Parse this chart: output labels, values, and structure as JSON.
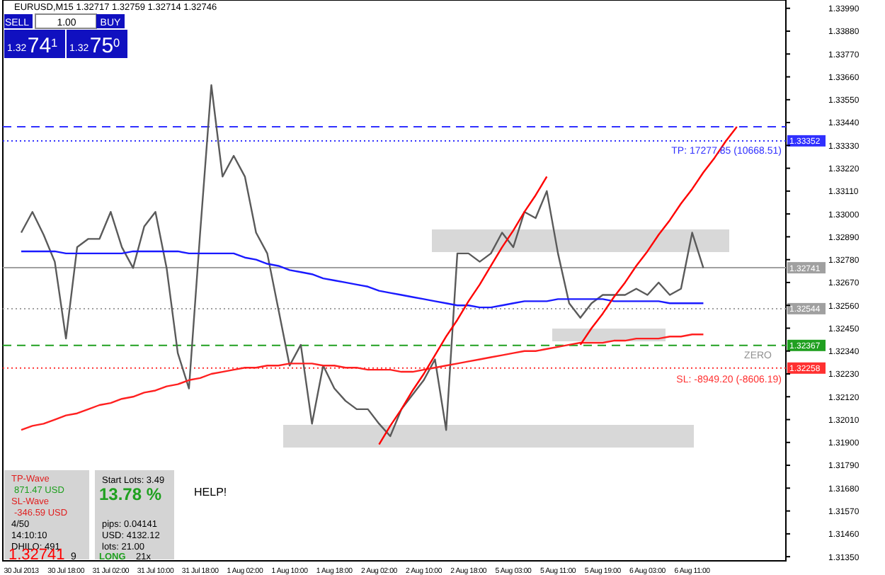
{
  "chart_data": {
    "type": "line",
    "title": "EURUSD,M15  1.32717 1.32759 1.32714 1.32746",
    "categories": [
      "30 Jul 2013",
      null,
      null,
      null,
      "30 Jul 18:00",
      null,
      null,
      null,
      "31 Jul 02:00",
      null,
      null,
      null,
      "31 Jul 10:00",
      null,
      null,
      null,
      "31 Jul 18:00",
      null,
      null,
      null,
      "1 Aug 02:00",
      null,
      null,
      null,
      "1 Aug 10:00",
      null,
      null,
      null,
      "1 Aug 18:00",
      null,
      null,
      null,
      "2 Aug 02:00",
      null,
      null,
      null,
      "2 Aug 10:00",
      null,
      null,
      null,
      "2 Aug 18:00",
      null,
      null,
      null,
      "5 Aug 03:00",
      null,
      null,
      null,
      "5 Aug 11:00",
      null,
      null,
      null,
      "5 Aug 19:00",
      null,
      null,
      null,
      "6 Aug 03:00",
      null,
      null,
      null,
      "6 Aug 11:00",
      null,
      null,
      null,
      null,
      null,
      null,
      null,
      null
    ],
    "ylim": [
      1.3133,
      1.3403
    ],
    "yticks": [
      {
        "value": 1.3135,
        "label": "1.31350"
      },
      {
        "value": 1.3146,
        "label": "1.31460"
      },
      {
        "value": 1.3157,
        "label": "1.31570"
      },
      {
        "value": 1.3168,
        "label": "1.31680"
      },
      {
        "value": 1.3179,
        "label": "1.31790"
      },
      {
        "value": 1.319,
        "label": "1.31900"
      },
      {
        "value": 1.3201,
        "label": "1.32010"
      },
      {
        "value": 1.3212,
        "label": "1.32120"
      },
      {
        "value": 1.3223,
        "label": "1.32230"
      },
      {
        "value": 1.3234,
        "label": "1.32340"
      },
      {
        "value": 1.3245,
        "label": "1.32450"
      },
      {
        "value": 1.3256,
        "label": "1.32560"
      },
      {
        "value": 1.3267,
        "label": "1.32670"
      },
      {
        "value": 1.3278,
        "label": "1.32780"
      },
      {
        "value": 1.3289,
        "label": "1.32890"
      },
      {
        "value": 1.33,
        "label": "1.33000"
      },
      {
        "value": 1.3311,
        "label": "1.33110"
      },
      {
        "value": 1.3322,
        "label": "1.33220"
      },
      {
        "value": 1.3333,
        "label": "1.33330"
      },
      {
        "value": 1.3344,
        "label": "1.33440"
      },
      {
        "value": 1.3355,
        "label": "1.33550"
      },
      {
        "value": 1.3366,
        "label": "1.33660"
      },
      {
        "value": 1.3377,
        "label": "1.33770"
      },
      {
        "value": 1.3388,
        "label": "1.33880"
      },
      {
        "value": 1.3399,
        "label": "1.33990"
      }
    ],
    "grid": false,
    "series": [
      {
        "color": "#5a5a5a",
        "values": [
          1.3291,
          1.3301,
          1.329,
          1.3277,
          1.324,
          1.3284,
          1.3288,
          1.3288,
          1.3301,
          1.3284,
          1.3274,
          1.3294,
          1.3301,
          1.3274,
          1.3233,
          1.3216,
          1.3291,
          1.3362,
          1.3318,
          1.3328,
          1.3318,
          1.3291,
          1.3281,
          1.3254,
          1.3227,
          1.3237,
          1.3199,
          1.3227,
          1.3216,
          1.321,
          1.3206,
          1.3206,
          1.3199,
          1.3193,
          1.3206,
          1.3213,
          1.322,
          1.323,
          1.3196,
          1.3281,
          1.3281,
          1.3277,
          1.3281,
          1.3291,
          1.3284,
          1.3301,
          1.3298,
          1.3311,
          1.3281,
          1.3257,
          1.325,
          1.3257,
          1.3261,
          1.3261,
          1.3261,
          1.3264,
          1.3261,
          1.3267,
          1.3261,
          1.3264,
          1.3291,
          1.3274,
          null,
          null,
          null,
          null,
          null,
          null,
          null
        ]
      },
      {
        "color": "#1a1aff",
        "values": [
          1.3282,
          1.3282,
          1.3282,
          1.3282,
          1.3281,
          1.3281,
          1.3281,
          1.3281,
          1.3281,
          1.3281,
          1.3282,
          1.3282,
          1.3282,
          1.3282,
          1.3282,
          1.3281,
          1.3281,
          1.3281,
          1.3281,
          1.3281,
          1.3279,
          1.3278,
          1.3276,
          1.3275,
          1.3273,
          1.3272,
          1.3271,
          1.3269,
          1.3268,
          1.3267,
          1.3266,
          1.3265,
          1.3263,
          1.3262,
          1.3261,
          1.326,
          1.3259,
          1.3258,
          1.3257,
          1.3256,
          1.3256,
          1.3255,
          1.3255,
          1.3256,
          1.3257,
          1.3258,
          1.3258,
          1.3258,
          1.3259,
          1.3259,
          1.3259,
          1.3259,
          1.3259,
          1.3258,
          1.3258,
          1.3258,
          1.3258,
          1.3258,
          1.3257,
          1.3257,
          1.3257,
          1.3257,
          null,
          null,
          null,
          null,
          null,
          null,
          null
        ]
      },
      {
        "color": "#ff2020",
        "values": [
          1.3196,
          1.3198,
          1.3199,
          1.3201,
          1.3203,
          1.3204,
          1.3206,
          1.3208,
          1.3209,
          1.3211,
          1.3212,
          1.3214,
          1.3215,
          1.3217,
          1.3218,
          1.322,
          1.3221,
          1.3223,
          1.3224,
          1.3225,
          1.3226,
          1.3226,
          1.3227,
          1.3227,
          1.3228,
          1.3228,
          1.3228,
          1.3227,
          1.3227,
          1.3226,
          1.3226,
          1.3225,
          1.3225,
          1.3225,
          1.3224,
          1.3224,
          1.3225,
          1.3226,
          1.3227,
          1.3228,
          1.3229,
          1.323,
          1.3231,
          1.3232,
          1.3233,
          1.3234,
          1.3234,
          1.3235,
          1.3236,
          1.3237,
          1.3238,
          1.3238,
          1.3238,
          1.3239,
          1.3239,
          1.324,
          1.324,
          1.324,
          1.3241,
          1.3241,
          1.3242,
          1.3242,
          null,
          null,
          null,
          null,
          null,
          null,
          null
        ]
      },
      {
        "color": "#ff0000",
        "values": [
          null,
          null,
          null,
          null,
          null,
          null,
          null,
          null,
          null,
          null,
          null,
          null,
          null,
          null,
          null,
          null,
          null,
          null,
          null,
          null,
          null,
          null,
          null,
          null,
          null,
          null,
          null,
          null,
          null,
          null,
          null,
          null,
          1.3189,
          1.3198,
          1.3206,
          1.3215,
          1.3223,
          1.3232,
          1.3241,
          1.3249,
          1.3258,
          1.3266,
          1.3275,
          1.3284,
          1.3292,
          1.3301,
          1.3309,
          1.3318,
          null,
          null,
          null,
          null,
          null,
          null,
          null,
          null,
          null,
          null,
          null,
          null,
          null,
          null,
          null,
          null,
          null,
          null,
          null,
          null,
          null
        ]
      },
      {
        "color": "#ff0000",
        "values": [
          null,
          null,
          null,
          null,
          null,
          null,
          null,
          null,
          null,
          null,
          null,
          null,
          null,
          null,
          null,
          null,
          null,
          null,
          null,
          null,
          null,
          null,
          null,
          null,
          null,
          null,
          null,
          null,
          null,
          null,
          null,
          null,
          null,
          null,
          null,
          null,
          null,
          null,
          null,
          null,
          null,
          null,
          null,
          null,
          null,
          null,
          null,
          null,
          null,
          null,
          1.3237,
          1.3245,
          1.3252,
          1.326,
          1.3267,
          1.3275,
          1.3282,
          1.329,
          1.3297,
          1.3305,
          1.3312,
          1.332,
          1.3327,
          1.3335,
          1.3342,
          null,
          null,
          null,
          null
        ]
      }
    ],
    "ref_lines": [
      {
        "axis": "y",
        "value": 1.3342,
        "color": "#3030ff",
        "line_style": "dashed"
      },
      {
        "axis": "y",
        "value": 1.33352,
        "label": "1.33352",
        "color": "#3030ff",
        "line_style": "dotted"
      },
      {
        "axis": "y",
        "value": 1.32741,
        "label": "1.32741",
        "color": "#a0a0a0",
        "line_style": "solid"
      },
      {
        "axis": "y",
        "value": 1.32544,
        "label": "1.32544",
        "color": "#a0a0a0",
        "line_style": "dotted"
      },
      {
        "axis": "y",
        "value": 1.32367,
        "label": "1.32367",
        "color": "#20a020",
        "line_style": "dashed"
      },
      {
        "axis": "y",
        "value": 1.32258,
        "label": "1.32258",
        "color": "#ff3030",
        "line_style": "dotted"
      }
    ],
    "annotations": [
      "SELL",
      "1.00",
      "BUY",
      "74$^{1}$",
      "75$^{0}$",
      "TP-Wave",
      "871.47 USD",
      "SL-Wave",
      "-346.59 USD",
      "4/50",
      "14:10:10",
      "DHILO: 491",
      "1.32741",
      "9",
      "Start Lots: 3.49",
      "13.78 %",
      "pips: 0.04141",
      "USD: 4132.12",
      "lots: 21.00",
      "LONG",
      "21x",
      "HELP!",
      {
        "text": "TP: 17277.85 (10668.51)",
        "y": 1.33352
      },
      {
        "text": "ZERO",
        "y": 1.32367
      },
      {
        "text": "SL: -8949.20 (-8606.19)",
        "y": 1.32258
      },
      "1.32",
      "1.32"
    ]
  }
}
